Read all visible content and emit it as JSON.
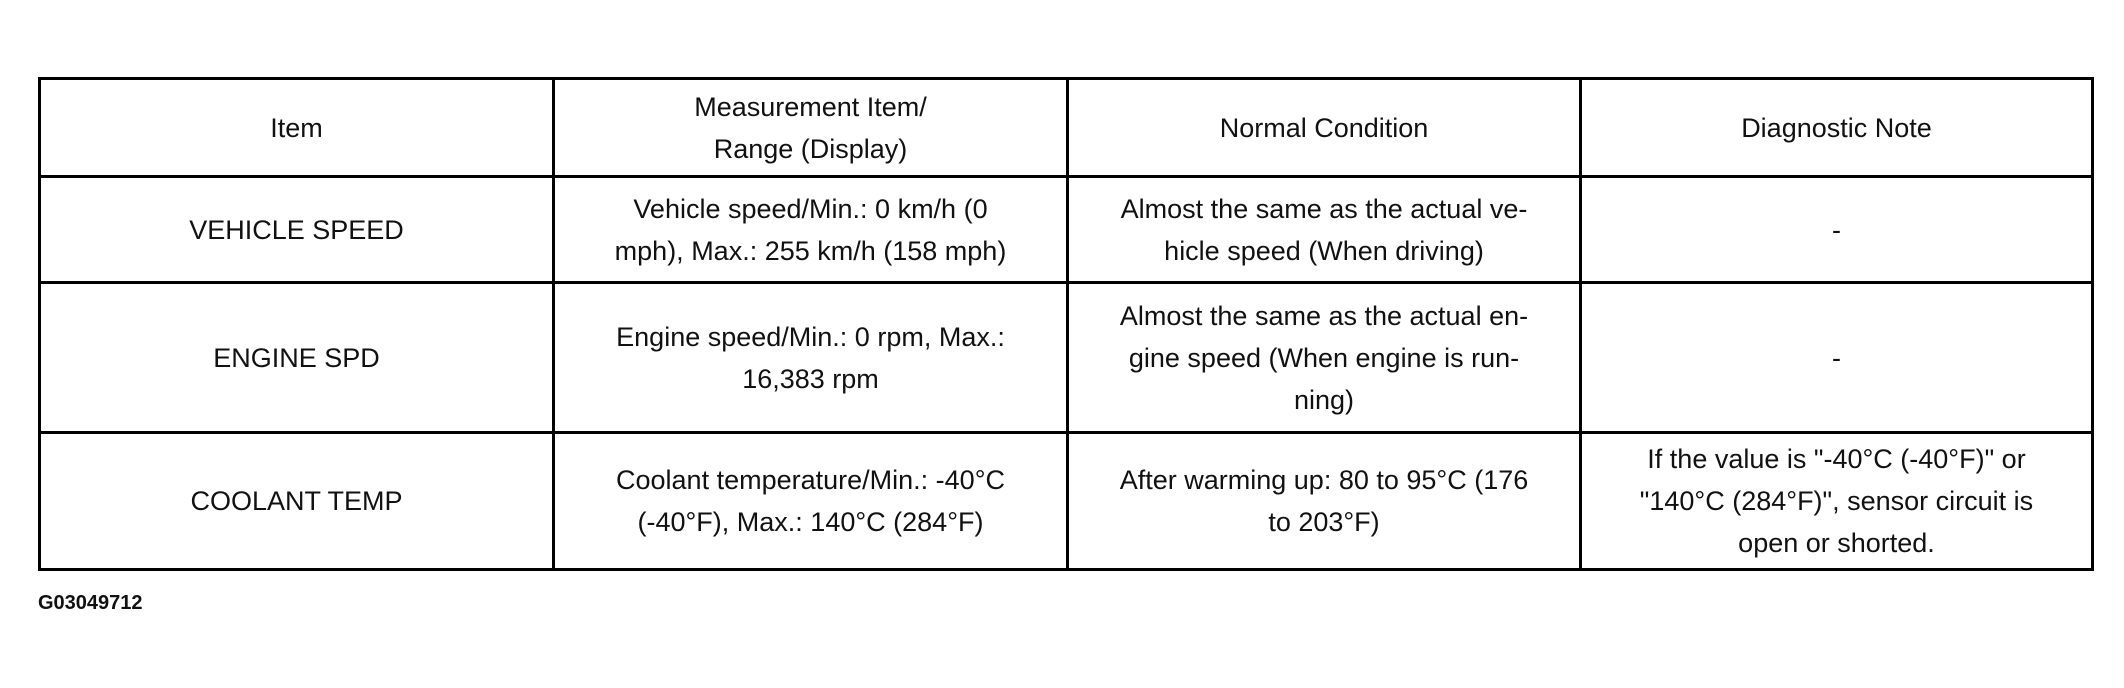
{
  "table": {
    "header": [
      [
        "Item"
      ],
      [
        "Measurement Item/",
        "Range (Display)"
      ],
      [
        "Normal Condition"
      ],
      [
        "Diagnostic Note"
      ]
    ],
    "rows": [
      [
        [
          "VEHICLE SPEED"
        ],
        [
          "Vehicle speed/Min.: 0 km/h (0",
          "mph), Max.: 255 km/h (158 mph)"
        ],
        [
          "Almost the same as the actual ve-",
          "hicle speed (When driving)"
        ],
        [
          "-"
        ]
      ],
      [
        [
          "ENGINE SPD"
        ],
        [
          "Engine speed/Min.: 0 rpm, Max.:",
          "16,383 rpm"
        ],
        [
          "Almost the same as the actual en-",
          "gine speed (When engine is run-",
          "ning)"
        ],
        [
          "-"
        ]
      ],
      [
        [
          "COOLANT TEMP"
        ],
        [
          "Coolant temperature/Min.: -40°C",
          "(-40°F), Max.: 140°C (284°F)"
        ],
        [
          "After warming up: 80 to 95°C (176",
          "to 203°F)"
        ],
        [
          "If the value is \"-40°C (-40°F)\" or",
          "\"140°C (284°F)\", sensor circuit is",
          "open or shorted."
        ]
      ]
    ]
  },
  "figure_id": "G03049712"
}
